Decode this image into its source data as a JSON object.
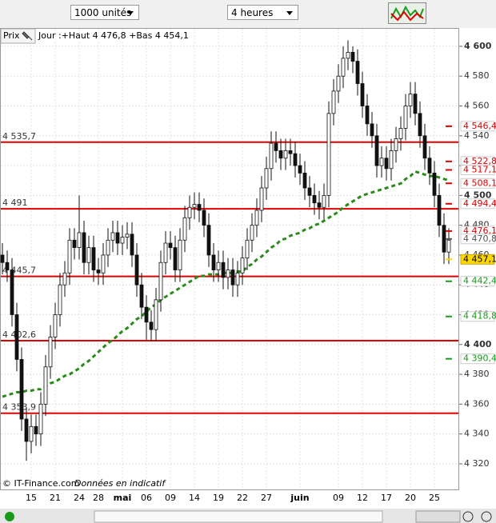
{
  "toolbar": {
    "units": "1000 unités",
    "period": "4 heures"
  },
  "header": {
    "prix": "Prix",
    "info": "Jour :+Haut 4 476,8 +Bas 4 454,1"
  },
  "footer": {
    "copyright": "© IT-Finance.com",
    "note": "Données en indicatif"
  },
  "chart_data": {
    "type": "candlestick",
    "categories": [
      null,
      null,
      null,
      null,
      null,
      null,
      "15",
      null,
      null,
      null,
      null,
      "21",
      null,
      null,
      null,
      null,
      "24",
      null,
      null,
      null,
      "28",
      null,
      null,
      null,
      null,
      "mai",
      null,
      null,
      null,
      null,
      "06",
      null,
      null,
      null,
      null,
      "09",
      null,
      null,
      null,
      null,
      "14",
      null,
      null,
      null,
      null,
      "19",
      null,
      null,
      null,
      null,
      "22",
      null,
      null,
      null,
      null,
      "27",
      null,
      null,
      null,
      null,
      null,
      null,
      "juin",
      null,
      null,
      null,
      null,
      null,
      null,
      null,
      "09",
      null,
      null,
      null,
      null,
      "12",
      null,
      null,
      null,
      null,
      "17",
      null,
      null,
      null,
      null,
      "20",
      null,
      null,
      null,
      null,
      "25",
      null,
      null,
      null
    ],
    "open": [
      4460,
      4455,
      4450,
      4420,
      4390,
      4350,
      4335,
      4345,
      4340,
      4360,
      4385,
      4405,
      4420,
      4440,
      4448,
      4470,
      4465,
      4475,
      4455,
      4465,
      4450,
      4448,
      4460,
      4470,
      4475,
      4468,
      4472,
      4474,
      4460,
      4440,
      4425,
      4415,
      4410,
      4430,
      4455,
      4468,
      4465,
      4450,
      4470,
      4485,
      4492,
      4494,
      4490,
      4480,
      4460,
      4450,
      4455,
      4445,
      4450,
      4440,
      4448,
      4458,
      4470,
      4480,
      4490,
      4505,
      4518,
      4535,
      4530,
      4525,
      4530,
      4528,
      4520,
      4515,
      4505,
      4500,
      4495,
      4492,
      4500,
      4555,
      4570,
      4580,
      4592,
      4596,
      4590,
      4575,
      4560,
      4548,
      4540,
      4520,
      4525,
      4518,
      4530,
      4538,
      4545,
      4560,
      4568,
      4555,
      4540,
      4525,
      4515,
      4500,
      4480,
      4462
    ],
    "high": [
      4468,
      4463,
      4458,
      4428,
      4398,
      4358,
      4353,
      4353,
      4368,
      4393,
      4413,
      4428,
      4448,
      4456,
      4478,
      4478,
      4500,
      4483,
      4473,
      4473,
      4458,
      4468,
      4478,
      4483,
      4483,
      4480,
      4482,
      4482,
      4468,
      4448,
      4433,
      4423,
      4438,
      4463,
      4476,
      4476,
      4473,
      4478,
      4493,
      4500,
      4502,
      4502,
      4498,
      4488,
      4468,
      4463,
      4463,
      4458,
      4458,
      4456,
      4466,
      4478,
      4488,
      4498,
      4513,
      4526,
      4543,
      4543,
      4538,
      4538,
      4538,
      4536,
      4528,
      4523,
      4513,
      4508,
      4503,
      4508,
      4563,
      4578,
      4588,
      4600,
      4604,
      4600,
      4598,
      4583,
      4568,
      4556,
      4548,
      4533,
      4533,
      4538,
      4546,
      4553,
      4568,
      4576,
      4576,
      4563,
      4548,
      4533,
      4523,
      4508,
      4488,
      4478
    ],
    "low": [
      4447,
      4442,
      4412,
      4382,
      4342,
      4322,
      4327,
      4332,
      4332,
      4352,
      4377,
      4397,
      4412,
      4432,
      4440,
      4457,
      4457,
      4447,
      4447,
      4442,
      4440,
      4440,
      4452,
      4462,
      4460,
      4460,
      4464,
      4452,
      4432,
      4417,
      4403,
      4402,
      4402,
      4422,
      4447,
      4457,
      4442,
      4442,
      4462,
      4477,
      4484,
      4482,
      4472,
      4452,
      4442,
      4442,
      4437,
      4437,
      4432,
      4432,
      4440,
      4450,
      4462,
      4472,
      4482,
      4497,
      4510,
      4522,
      4517,
      4517,
      4520,
      4512,
      4507,
      4497,
      4492,
      4487,
      4484,
      4484,
      4492,
      4547,
      4562,
      4572,
      4584,
      4582,
      4567,
      4552,
      4540,
      4532,
      4512,
      4512,
      4510,
      4510,
      4522,
      4530,
      4537,
      4552,
      4547,
      4532,
      4517,
      4507,
      4492,
      4472,
      4454,
      4454
    ],
    "close": [
      4455,
      4450,
      4420,
      4390,
      4350,
      4335,
      4345,
      4340,
      4360,
      4385,
      4405,
      4420,
      4440,
      4448,
      4470,
      4465,
      4475,
      4455,
      4465,
      4450,
      4448,
      4460,
      4470,
      4475,
      4468,
      4472,
      4474,
      4460,
      4440,
      4425,
      4415,
      4410,
      4430,
      4455,
      4468,
      4465,
      4450,
      4470,
      4485,
      4492,
      4494,
      4490,
      4480,
      4460,
      4450,
      4455,
      4445,
      4450,
      4440,
      4448,
      4458,
      4470,
      4480,
      4490,
      4505,
      4518,
      4535,
      4530,
      4525,
      4530,
      4528,
      4520,
      4515,
      4505,
      4500,
      4495,
      4492,
      4500,
      4555,
      4570,
      4580,
      4592,
      4596,
      4590,
      4575,
      4560,
      4548,
      4540,
      4520,
      4525,
      4518,
      4530,
      4538,
      4545,
      4560,
      4568,
      4555,
      4540,
      4525,
      4515,
      4500,
      4480,
      4462,
      4470
    ],
    "moving_average": {
      "color": "#2a8a1a",
      "values": [
        4365,
        4366,
        4367,
        4368,
        4368,
        4369,
        4369,
        4370,
        4370,
        4372,
        4374,
        4375,
        4377,
        4379,
        4380,
        4382,
        4384,
        4387,
        4389,
        4392,
        4395,
        4398,
        4401,
        4403,
        4406,
        4409,
        4411,
        4414,
        4417,
        4419,
        4422,
        4425,
        4427,
        4430,
        4432,
        4434,
        4436,
        4438,
        4440,
        4442,
        4444,
        4446,
        4446,
        4447,
        4447,
        4447,
        4448,
        4448,
        4448,
        4449,
        4449,
        4452,
        4454,
        4457,
        4459,
        4462,
        4465,
        4467,
        4470,
        4471,
        4473,
        4474,
        4475,
        4477,
        4478,
        4480,
        4481,
        4483,
        4485,
        4487,
        4489,
        4492,
        4494,
        4496,
        4498,
        4500,
        4501,
        4502,
        4503,
        4504,
        4505,
        4506,
        4507,
        4508,
        4511,
        4513,
        4516,
        4515,
        4514,
        4513,
        4513,
        4512,
        4511,
        4510
      ]
    },
    "levels": {
      "color": "#e00000",
      "items": [
        {
          "value": 4535.7,
          "label": "4 535,7"
        },
        {
          "value": 4491,
          "label": "4 491"
        },
        {
          "value": 4445.7,
          "label": "4 445,7"
        },
        {
          "value": 4402.6,
          "label": "4 402,6"
        },
        {
          "value": 4353.9,
          "label": "4 353,9"
        }
      ]
    },
    "price_tags": [
      {
        "value": 4546.4,
        "label": "4 546,4",
        "color": "#e00000"
      },
      {
        "value": 4522.8,
        "label": "4 522,8",
        "color": "#e00000"
      },
      {
        "value": 4517.1,
        "label": "4 517,1",
        "color": "#e00000"
      },
      {
        "value": 4508.1,
        "label": "4 508,1",
        "color": "#e00000"
      },
      {
        "value": 4494.4,
        "label": "4 494,4",
        "color": "#e00000"
      },
      {
        "value": 4476.1,
        "label": "4 476,1",
        "color": "#e00000"
      },
      {
        "value": 4470.8,
        "label": "4 470,8",
        "color": "#555555"
      },
      {
        "value": 4457.1,
        "label": "4 457,1",
        "color": "#ffd700"
      },
      {
        "value": 4442.4,
        "label": "4 442,4",
        "color": "#1a9a1a"
      },
      {
        "value": 4418.8,
        "label": "4 418,8",
        "color": "#1a9a1a"
      },
      {
        "value": 4390.4,
        "label": "4 390,4",
        "color": "#1a9a1a"
      }
    ],
    "ylim": [
      4302.8,
      4612.3
    ],
    "yticks": [
      {
        "value": 4320,
        "label": "4 320"
      },
      {
        "value": 4340,
        "label": "4 340"
      },
      {
        "value": 4360,
        "label": "4 360"
      },
      {
        "value": 4380,
        "label": "4 380"
      },
      {
        "value": 4400,
        "label": "4 400"
      },
      {
        "value": 4420,
        "label": "4 420"
      },
      {
        "value": 4440,
        "label": "4 440"
      },
      {
        "value": 4460,
        "label": "4 460"
      },
      {
        "value": 4480,
        "label": "4 480"
      },
      {
        "value": 4500,
        "label": "4 500"
      },
      {
        "value": 4520,
        "label": "4 520"
      },
      {
        "value": 4540,
        "label": "4 540"
      },
      {
        "value": 4560,
        "label": "4 560"
      },
      {
        "value": 4580,
        "label": "4 580"
      },
      {
        "value": 4600,
        "label": "4 600"
      }
    ],
    "grid": true
  }
}
